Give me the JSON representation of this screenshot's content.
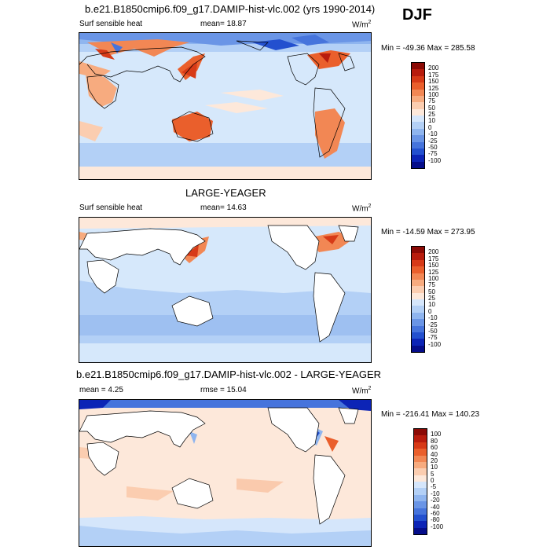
{
  "season": "DJF",
  "panels": [
    {
      "title": "b.e21.B1850cmip6.f09_g17.DAMIP-hist-vlc.002 (yrs 1990-2014)",
      "left_label": "Surf sensible heat",
      "center_label": "mean=  18.87",
      "units": "W/m",
      "units_sup": "2",
      "minmax": "Min = -49.36 Max = 285.58",
      "colorbar_ticks": [
        "200",
        "175",
        "150",
        "125",
        "100",
        "75",
        "50",
        "25",
        "10",
        "0",
        "-10",
        "-25",
        "-50",
        "-75",
        "-100"
      ],
      "colorbar_colors": [
        "#8b0a05",
        "#b81c0d",
        "#d73a17",
        "#ea5f2c",
        "#f28754",
        "#f7ab7f",
        "#fbcdb0",
        "#fde8da",
        "#d5e6fb",
        "#b3d0f6",
        "#8fb5ef",
        "#6a95e6",
        "#4674dc",
        "#2350cf",
        "#0c24b6",
        "#050d8a"
      ]
    },
    {
      "title": "LARGE-YEAGER",
      "left_label": "Surf sensible heat",
      "center_label": "mean=  14.63",
      "units": "W/m",
      "units_sup": "2",
      "minmax": "Min = -14.59 Max = 273.95",
      "colorbar_ticks": [
        "200",
        "175",
        "150",
        "125",
        "100",
        "75",
        "50",
        "25",
        "10",
        "0",
        "-10",
        "-25",
        "-50",
        "-75",
        "-100"
      ],
      "colorbar_colors": [
        "#8b0a05",
        "#b81c0d",
        "#d73a17",
        "#ea5f2c",
        "#f28754",
        "#f7ab7f",
        "#fbcdb0",
        "#fde8da",
        "#d5e6fb",
        "#b3d0f6",
        "#8fb5ef",
        "#6a95e6",
        "#4674dc",
        "#2350cf",
        "#0c24b6",
        "#050d8a"
      ]
    },
    {
      "title": "b.e21.B1850cmip6.f09_g17.DAMIP-hist-vlc.002 - LARGE-YEAGER",
      "left_label": "mean =   4.25",
      "center_label": "rmse =  15.04",
      "units": "W/m",
      "units_sup": "2",
      "minmax": "Min = -216.41 Max = 140.23",
      "colorbar_ticks": [
        "100",
        "80",
        "60",
        "40",
        "20",
        "10",
        "5",
        "0",
        "-5",
        "-10",
        "-20",
        "-40",
        "-60",
        "-80",
        "-100"
      ],
      "colorbar_colors": [
        "#8b0a05",
        "#b81c0d",
        "#d73a17",
        "#ea5f2c",
        "#f28754",
        "#f7ab7f",
        "#fbcdb0",
        "#fde8da",
        "#d5e6fb",
        "#b3d0f6",
        "#8fb5ef",
        "#6a95e6",
        "#4674dc",
        "#2350cf",
        "#0c24b6",
        "#050d8a"
      ]
    }
  ]
}
